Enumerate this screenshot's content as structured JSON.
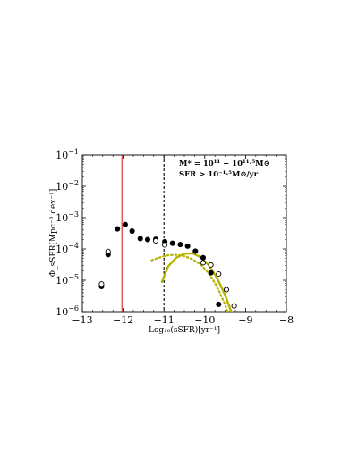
{
  "chart_data": {
    "type": "scatter",
    "title": "",
    "xlabel": "Log₁₀(sSFR)[yr⁻¹]",
    "ylabel": "Φ_sSFR[Mpc⁻³ dex⁻¹]",
    "xlim": [
      -13,
      -8
    ],
    "ylim_log10": [
      -6,
      -1
    ],
    "yscale": "log",
    "grid": false,
    "x_ticks": [
      -13,
      -12,
      -11,
      -10,
      -9,
      -8
    ],
    "x_tick_labels": [
      "−13",
      "−12",
      "−11",
      "−10",
      "−9",
      "−8"
    ],
    "y_ticks_log10": [
      -6,
      -5,
      -4,
      -3,
      -2,
      -1
    ],
    "annotation": {
      "line1": "M* = 10¹¹ − 10¹¹·⁵M⊙",
      "line2": "SFR > 10⁻¹·⁵M⊙/yr",
      "position": "top-right"
    },
    "vertical_lines": [
      {
        "x": -12.03,
        "color": "#d62728",
        "style": "solid"
      },
      {
        "x": -11.0,
        "color": "#000000",
        "style": "dashed"
      }
    ],
    "series": [
      {
        "marker": "filled-circle",
        "color": "#000000",
        "points": [
          {
            "x": -12.53,
            "log10_y": -5.2
          },
          {
            "x": -12.37,
            "log10_y": -4.18
          },
          {
            "x": -12.14,
            "log10_y": -3.36
          },
          {
            "x": -11.95,
            "log10_y": -3.22
          },
          {
            "x": -11.78,
            "log10_y": -3.43
          },
          {
            "x": -11.58,
            "log10_y": -3.67
          },
          {
            "x": -11.4,
            "log10_y": -3.7
          },
          {
            "x": -11.2,
            "log10_y": -3.69
          },
          {
            "x": -10.98,
            "log10_y": -3.77
          },
          {
            "x": -10.79,
            "log10_y": -3.82
          },
          {
            "x": -10.6,
            "log10_y": -3.86
          },
          {
            "x": -10.42,
            "log10_y": -3.91
          },
          {
            "x": -10.23,
            "log10_y": -4.07
          },
          {
            "x": -10.04,
            "log10_y": -4.28
          },
          {
            "x": -9.85,
            "log10_y": -4.76
          },
          {
            "x": -9.66,
            "log10_y": -5.77
          }
        ]
      },
      {
        "marker": "open-circle",
        "color": "#000000",
        "points": [
          {
            "x": -12.53,
            "log10_y": -5.12
          },
          {
            "x": -12.37,
            "log10_y": -4.08
          },
          {
            "x": -11.2,
            "log10_y": -3.74
          },
          {
            "x": -10.98,
            "log10_y": -3.87
          },
          {
            "x": -10.04,
            "log10_y": -4.44
          },
          {
            "x": -9.85,
            "log10_y": -4.51
          },
          {
            "x": -9.66,
            "log10_y": -4.8
          },
          {
            "x": -9.47,
            "log10_y": -5.3
          },
          {
            "x": -9.28,
            "log10_y": -5.82
          }
        ]
      },
      {
        "marker": "line-solid",
        "color": "#b5b200",
        "points": [
          {
            "x": -11.05,
            "log10_y": -5.05
          },
          {
            "x": -10.9,
            "log10_y": -4.56
          },
          {
            "x": -10.7,
            "log10_y": -4.28
          },
          {
            "x": -10.5,
            "log10_y": -4.15
          },
          {
            "x": -10.3,
            "log10_y": -4.14
          },
          {
            "x": -10.1,
            "log10_y": -4.26
          },
          {
            "x": -9.9,
            "log10_y": -4.52
          },
          {
            "x": -9.7,
            "log10_y": -4.92
          },
          {
            "x": -9.5,
            "log10_y": -5.48
          },
          {
            "x": -9.3,
            "log10_y": -6.18
          }
        ]
      },
      {
        "marker": "line-dotted",
        "color": "#b5b200",
        "points": [
          {
            "x": -11.3,
            "log10_y": -4.36
          },
          {
            "x": -11.1,
            "log10_y": -4.27
          },
          {
            "x": -10.9,
            "log10_y": -4.2
          },
          {
            "x": -10.7,
            "log10_y": -4.19
          },
          {
            "x": -10.5,
            "log10_y": -4.23
          },
          {
            "x": -10.3,
            "log10_y": -4.33
          },
          {
            "x": -10.1,
            "log10_y": -4.5
          },
          {
            "x": -9.9,
            "log10_y": -4.78
          },
          {
            "x": -9.7,
            "log10_y": -5.2
          },
          {
            "x": -9.5,
            "log10_y": -5.78
          },
          {
            "x": -9.4,
            "log10_y": -6.2
          }
        ]
      }
    ]
  }
}
